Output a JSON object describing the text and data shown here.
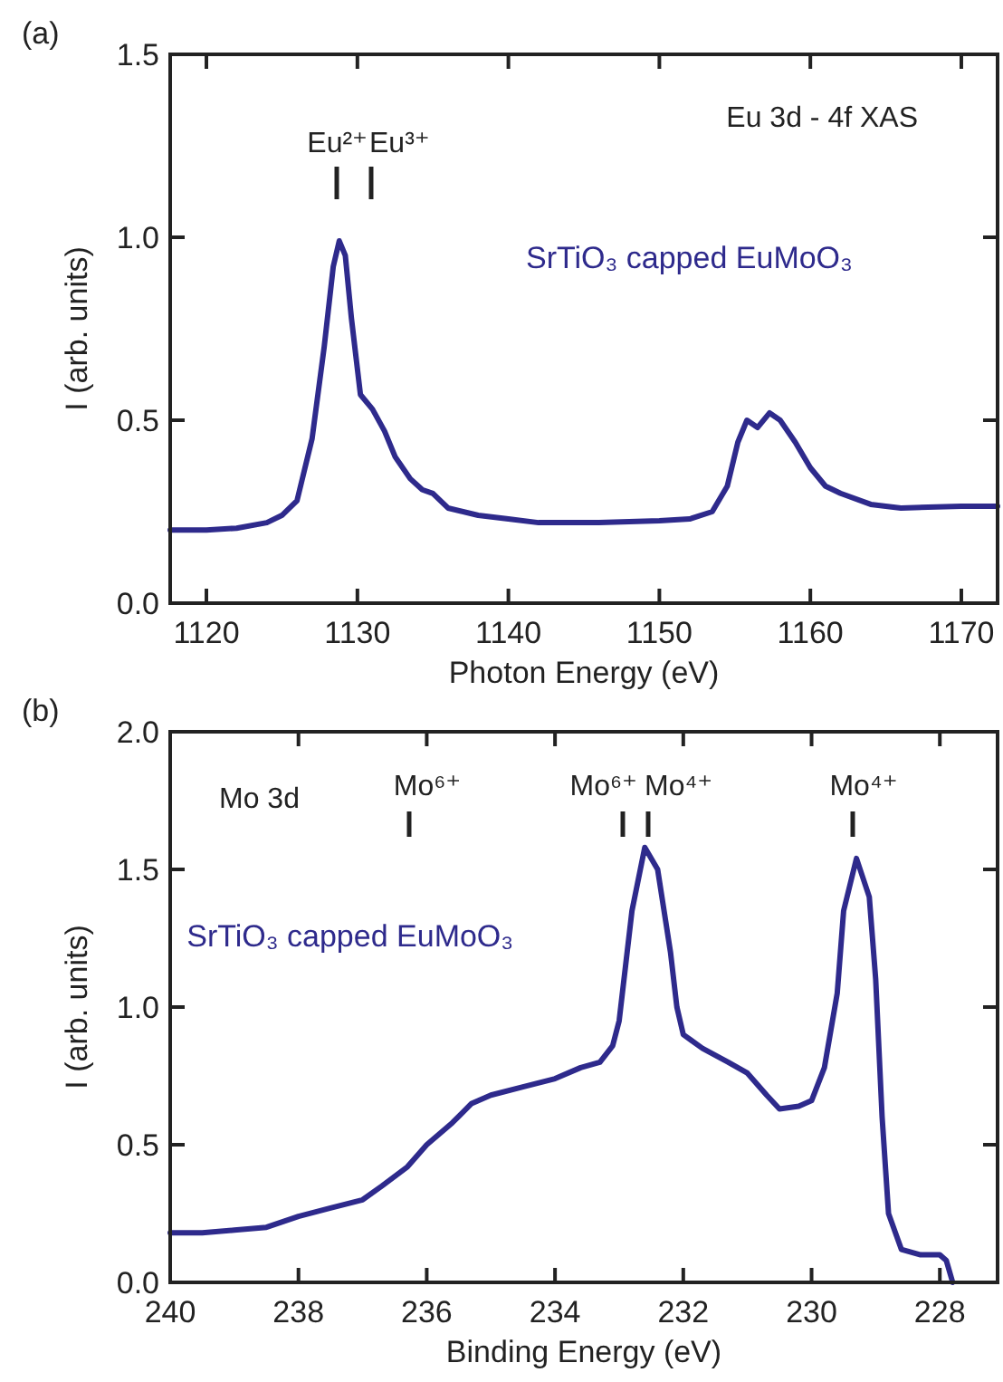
{
  "chart_data": [
    {
      "type": "line",
      "title": "(a)",
      "xlabel": "Photon Energy (eV)",
      "ylabel": "I (arb. units)",
      "xlim": [
        1117.6,
        1172.4
      ],
      "xticks": [
        1120,
        1130,
        1140,
        1150,
        1160,
        1170
      ],
      "ylim": [
        0,
        1.5
      ],
      "yticks": [
        {
          "value": 0,
          "label": "0.0"
        },
        {
          "value": 0.5,
          "label": "0.5"
        },
        {
          "value": 1,
          "label": "1.0"
        },
        {
          "value": 1.5,
          "label": "1.5"
        }
      ],
      "grid": false,
      "annotations": [
        "Eu²⁺",
        "Eu³⁺",
        "Eu 3d - 4f XAS"
      ],
      "series": [
        {
          "name": "SrTiO₃ capped EuMoO₃",
          "color": "#2e2a8c",
          "x": [
            1117.6,
            1120,
            1122,
            1124,
            1125,
            1126,
            1127,
            1127.8,
            1128.4,
            1128.8,
            1129.2,
            1129.6,
            1130.2,
            1131,
            1131.8,
            1132.5,
            1133.5,
            1134.3,
            1135,
            1136,
            1138,
            1140,
            1142,
            1146,
            1150,
            1152,
            1153.5,
            1154.5,
            1155.2,
            1155.8,
            1156.5,
            1157.3,
            1158,
            1159,
            1160,
            1161,
            1162,
            1164,
            1166,
            1170,
            1172.4
          ],
          "values": [
            0.2,
            0.2,
            0.205,
            0.22,
            0.24,
            0.28,
            0.45,
            0.7,
            0.92,
            0.99,
            0.95,
            0.78,
            0.57,
            0.53,
            0.47,
            0.4,
            0.34,
            0.31,
            0.3,
            0.26,
            0.24,
            0.23,
            0.22,
            0.22,
            0.225,
            0.23,
            0.25,
            0.32,
            0.44,
            0.5,
            0.48,
            0.52,
            0.5,
            0.44,
            0.37,
            0.32,
            0.3,
            0.27,
            0.26,
            0.265,
            0.265
          ]
        }
      ]
    },
    {
      "type": "line",
      "title": "(b)",
      "xlabel": "Binding Energy (eV)",
      "ylabel": "I (arb. units)",
      "xlim": [
        240,
        227.1
      ],
      "xticks": [
        240,
        238,
        236,
        234,
        232,
        230,
        228
      ],
      "ylim": [
        0,
        2
      ],
      "yticks": [
        {
          "value": 0,
          "label": "0.0"
        },
        {
          "value": 0.5,
          "label": "0.5"
        },
        {
          "value": 1,
          "label": "1.0"
        },
        {
          "value": 1.5,
          "label": "1.5"
        },
        {
          "value": 2,
          "label": "2.0"
        }
      ],
      "grid": false,
      "annotations": [
        "Mo⁶⁺",
        "Mo⁶⁺",
        "Mo⁴⁺",
        "Mo⁴⁺",
        "Mo 3d"
      ],
      "series": [
        {
          "name": "SrTiO₃ capped EuMoO₃",
          "color": "#2e2a8c",
          "x": [
            240,
            239.5,
            239,
            238.5,
            238,
            237.5,
            237,
            236.7,
            236.3,
            236,
            235.6,
            235.3,
            235,
            234.5,
            234,
            233.6,
            233.3,
            233.1,
            233,
            232.9,
            232.8,
            232.6,
            232.4,
            232.2,
            232.1,
            232,
            231.7,
            231.3,
            231,
            230.7,
            230.5,
            230.2,
            230,
            229.8,
            229.6,
            229.5,
            229.3,
            229.1,
            229,
            228.9,
            228.8,
            228.6,
            228.3,
            228,
            227.9,
            227.8
          ],
          "values": [
            0.18,
            0.18,
            0.19,
            0.2,
            0.24,
            0.27,
            0.3,
            0.35,
            0.42,
            0.5,
            0.58,
            0.65,
            0.68,
            0.71,
            0.74,
            0.78,
            0.8,
            0.86,
            0.95,
            1.15,
            1.35,
            1.58,
            1.5,
            1.2,
            1,
            0.9,
            0.85,
            0.8,
            0.76,
            0.68,
            0.63,
            0.64,
            0.66,
            0.78,
            1.05,
            1.35,
            1.54,
            1.4,
            1.1,
            0.6,
            0.25,
            0.12,
            0.1,
            0.1,
            0.08,
            0
          ]
        }
      ]
    }
  ]
}
